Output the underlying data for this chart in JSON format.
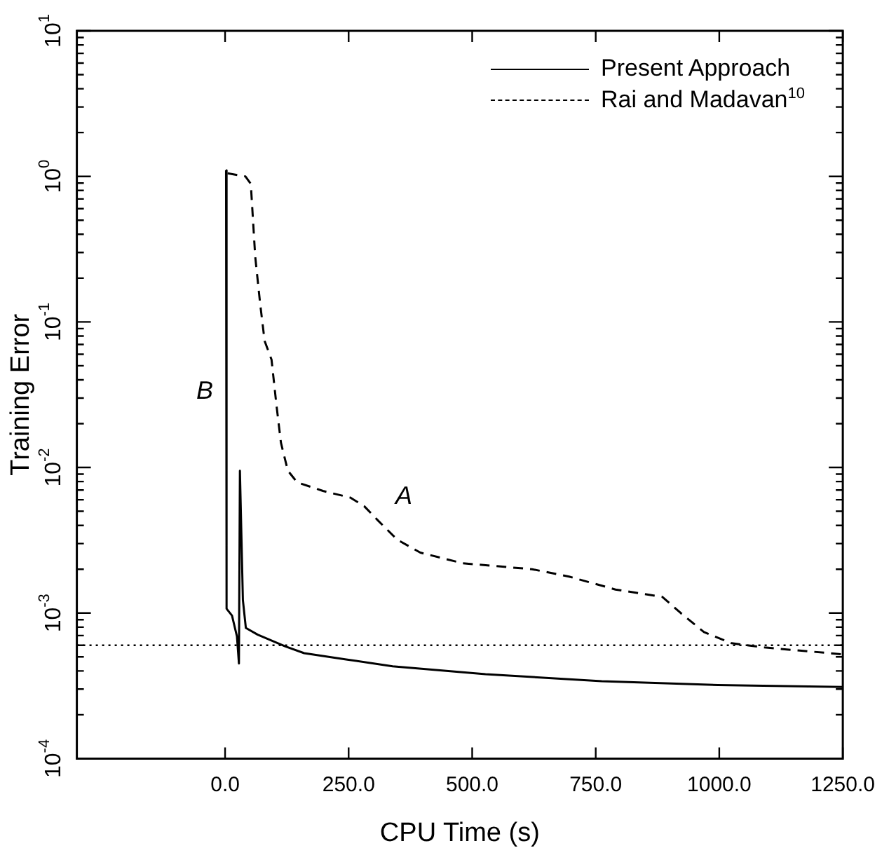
{
  "chart_data": {
    "type": "line",
    "xlabel": "CPU Time (s)",
    "ylabel": "Training Error",
    "log": "y",
    "grid": false,
    "legend": "top right",
    "marker": "none",
    "xlim": [
      -300,
      1250
    ],
    "xticks": [
      {
        "value": 0,
        "label": "0.0"
      },
      {
        "value": 250,
        "label": "250.0"
      },
      {
        "value": 500,
        "label": "500.0"
      },
      {
        "value": 750,
        "label": "750.0"
      },
      {
        "value": 1000,
        "label": "1000.0"
      },
      {
        "value": 1250,
        "label": "1250.0"
      }
    ],
    "ylim": [
      0.0001,
      10
    ],
    "yticks": [
      {
        "value": 0.0001,
        "label": "10$^{-4}$"
      },
      {
        "value": 0.0002,
        "label": null
      },
      {
        "value": 0.0003,
        "label": null
      },
      {
        "value": 0.0004,
        "label": null
      },
      {
        "value": 0.0005,
        "label": null
      },
      {
        "value": 0.0006,
        "label": null
      },
      {
        "value": 0.0007,
        "label": null
      },
      {
        "value": 0.0008,
        "label": null
      },
      {
        "value": 0.0009,
        "label": null
      },
      {
        "value": 0.001,
        "label": "10$^{-3}$"
      },
      {
        "value": 0.002,
        "label": null
      },
      {
        "value": 0.003,
        "label": null
      },
      {
        "value": 0.004,
        "label": null
      },
      {
        "value": 0.005,
        "label": null
      },
      {
        "value": 0.006,
        "label": null
      },
      {
        "value": 0.007,
        "label": null
      },
      {
        "value": 0.008,
        "label": null
      },
      {
        "value": 0.009,
        "label": null
      },
      {
        "value": 0.01,
        "label": "10$^{-2}$"
      },
      {
        "value": 0.02,
        "label": null
      },
      {
        "value": 0.03,
        "label": null
      },
      {
        "value": 0.04,
        "label": null
      },
      {
        "value": 0.05,
        "label": null
      },
      {
        "value": 0.06,
        "label": null
      },
      {
        "value": 0.07,
        "label": null
      },
      {
        "value": 0.08,
        "label": null
      },
      {
        "value": 0.09,
        "label": null
      },
      {
        "value": 0.1,
        "label": "10$^{-1}$"
      },
      {
        "value": 0.2,
        "label": null
      },
      {
        "value": 0.3,
        "label": null
      },
      {
        "value": 0.4,
        "label": null
      },
      {
        "value": 0.5,
        "label": null
      },
      {
        "value": 0.6,
        "label": null
      },
      {
        "value": 0.7,
        "label": null
      },
      {
        "value": 0.8,
        "label": null
      },
      {
        "value": 0.9,
        "label": null
      },
      {
        "value": 1,
        "label": "10$^{0}$"
      },
      {
        "value": 2,
        "label": null
      },
      {
        "value": 3,
        "label": null
      },
      {
        "value": 4,
        "label": null
      },
      {
        "value": 5,
        "label": null
      },
      {
        "value": 6,
        "label": null
      },
      {
        "value": 7,
        "label": null
      },
      {
        "value": 8,
        "label": null
      },
      {
        "value": 9,
        "label": null
      },
      {
        "value": 10,
        "label": "10$^{1}$"
      }
    ],
    "series": [
      {
        "name": "Present Approach",
        "color": "#000000",
        "line_style": "solid",
        "x": [
          2,
          3,
          14,
          24,
          28,
          30,
          36,
          42,
          66,
          122,
          160,
          245,
          339,
          527,
          762,
          997,
          1250
        ],
        "values": [
          1.1,
          0.00107,
          0.00096,
          0.00069,
          0.00045,
          0.0095,
          0.00123,
          0.00079,
          0.00071,
          0.00059,
          0.00053,
          0.00048,
          0.00043,
          0.00038,
          0.00034,
          0.00032,
          0.00031
        ]
      },
      {
        "name": "Rai and Madavan$^{10}$",
        "color": "#000000",
        "line_style": "dashed",
        "x": [
          5,
          41,
          52,
          61,
          71,
          80,
          94,
          104,
          113,
          127,
          146,
          198,
          254,
          282,
          310,
          348,
          395,
          480,
          621,
          696,
          790,
          885,
          922,
          969,
          1025,
          1091,
          1250
        ],
        "values": [
          1.05,
          1.0,
          0.89,
          0.28,
          0.133,
          0.074,
          0.055,
          0.0267,
          0.0148,
          0.0095,
          0.0079,
          0.0069,
          0.0062,
          0.0054,
          0.0043,
          0.0032,
          0.0026,
          0.0022,
          0.002,
          0.00178,
          0.00145,
          0.00129,
          0.001,
          0.00074,
          0.00062,
          0.00058,
          0.00052
        ]
      }
    ],
    "ref_lines": [
      {
        "axis": "y",
        "value": 0.0006,
        "color": "#000000",
        "line_style": "dotted"
      }
    ],
    "annotations": [
      "A",
      "B"
    ]
  }
}
